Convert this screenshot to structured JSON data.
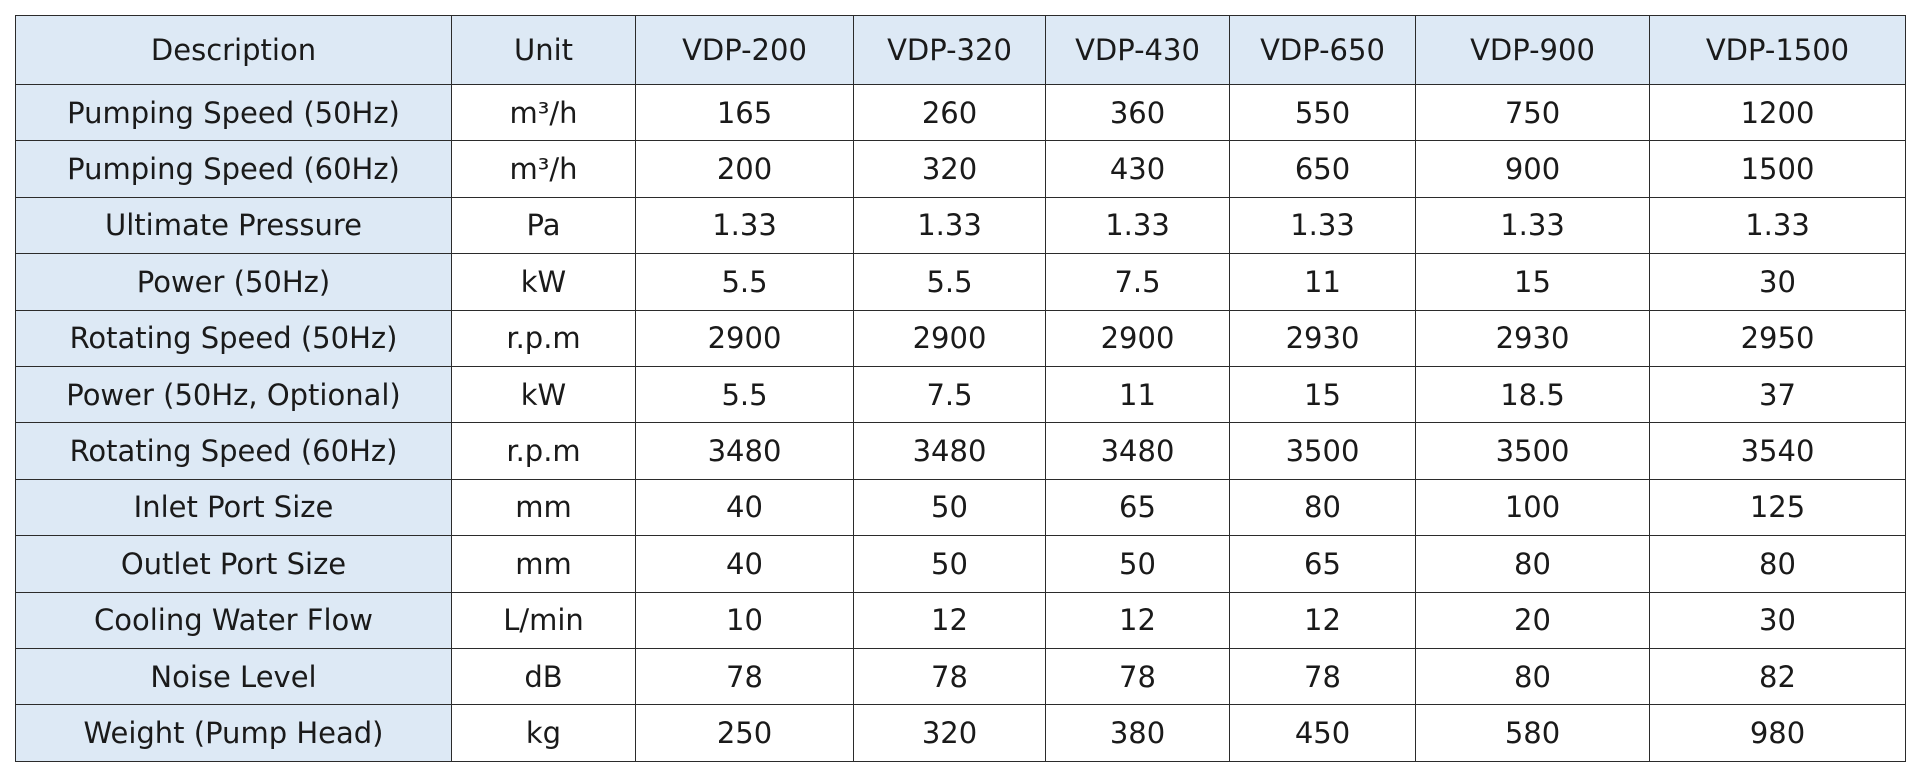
{
  "table": {
    "headers": [
      "Description",
      "Unit",
      "VDP-200",
      "VDP-320",
      "VDP-430",
      "VDP-650",
      "VDP-900",
      "VDP-1500"
    ],
    "rows": [
      {
        "label": "Pumping Speed (50Hz)",
        "unit": "m³/h",
        "values": [
          "165",
          "260",
          "360",
          "550",
          "750",
          "1200"
        ]
      },
      {
        "label": "Pumping Speed (60Hz)",
        "unit": "m³/h",
        "values": [
          "200",
          "320",
          "430",
          "650",
          "900",
          "1500"
        ]
      },
      {
        "label": "Ultimate Pressure",
        "unit": "Pa",
        "values": [
          "1.33",
          "1.33",
          "1.33",
          "1.33",
          "1.33",
          "1.33"
        ]
      },
      {
        "label": "Power (50Hz)",
        "unit": "kW",
        "values": [
          "5.5",
          "5.5",
          "7.5",
          "11",
          "15",
          "30"
        ]
      },
      {
        "label": "Rotating Speed (50Hz)",
        "unit": "r.p.m",
        "values": [
          "2900",
          "2900",
          "2900",
          "2930",
          "2930",
          "2950"
        ]
      },
      {
        "label": "Power (50Hz, Optional)",
        "unit": "kW",
        "values": [
          "5.5",
          "7.5",
          "11",
          "15",
          "18.5",
          "37"
        ]
      },
      {
        "label": "Rotating Speed (60Hz)",
        "unit": "r.p.m",
        "values": [
          "3480",
          "3480",
          "3480",
          "3500",
          "3500",
          "3540"
        ]
      },
      {
        "label": "Inlet Port Size",
        "unit": "mm",
        "values": [
          "40",
          "50",
          "65",
          "80",
          "100",
          "125"
        ]
      },
      {
        "label": "Outlet Port Size",
        "unit": "mm",
        "values": [
          "40",
          "50",
          "50",
          "65",
          "80",
          "80"
        ]
      },
      {
        "label": "Cooling Water Flow",
        "unit": "L/min",
        "values": [
          "10",
          "12",
          "12",
          "12",
          "20",
          "30"
        ]
      },
      {
        "label": "Noise Level",
        "unit": "dB",
        "values": [
          "78",
          "78",
          "78",
          "78",
          "80",
          "82"
        ]
      },
      {
        "label": "Weight (Pump Head)",
        "unit": "kg",
        "values": [
          "250",
          "320",
          "380",
          "450",
          "580",
          "980"
        ]
      }
    ]
  },
  "colors": {
    "header_background": "#dde9f5",
    "label_background": "#dde9f5",
    "cell_background": "#ffffff",
    "border": "#2b2b2b",
    "text": "#1a1a1a"
  }
}
